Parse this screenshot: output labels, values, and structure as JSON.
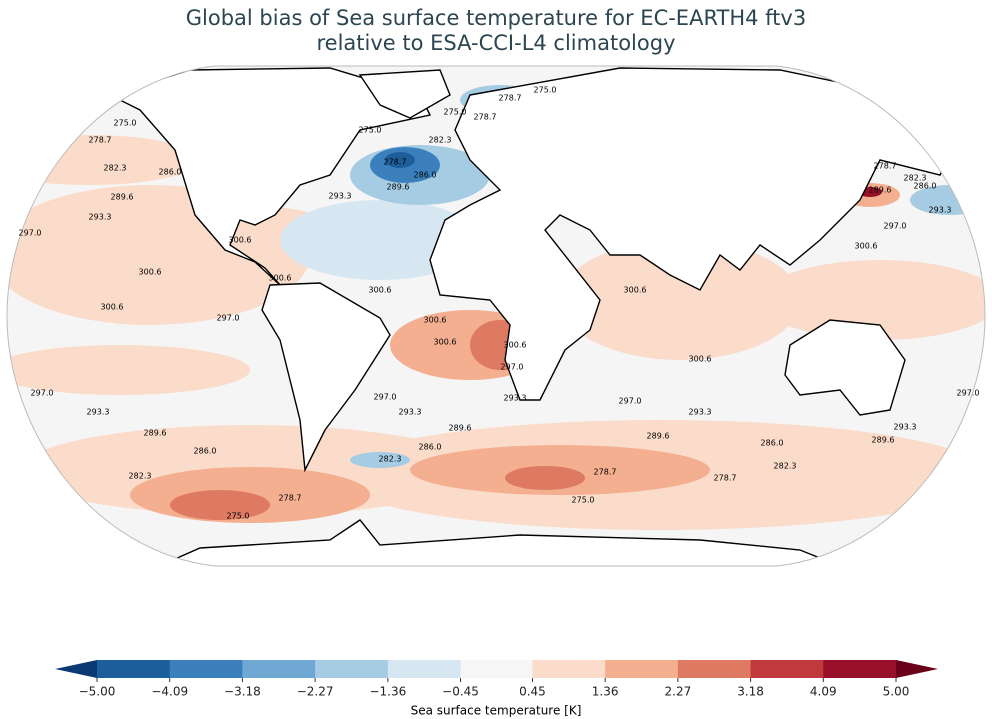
{
  "map": {
    "title_lines": [
      "Global bias of Sea surface temperature for EC-EARTH4 ftv3",
      "relative to ESA-CCI-L4 climatology"
    ],
    "colorbar": {
      "label": "Sea surface temperature [K]",
      "ticks": [
        {
          "value": -5,
          "label": "−5.00"
        },
        {
          "value": -4.09,
          "label": "−4.09"
        },
        {
          "value": -3.18,
          "label": "−3.18"
        },
        {
          "value": -2.27,
          "label": "−2.27"
        },
        {
          "value": -1.36,
          "label": "−1.36"
        },
        {
          "value": -0.45,
          "label": "−0.45"
        },
        0.45,
        1.36,
        2.27,
        3.18,
        4.09,
        {
          "value": 5,
          "label": "5.00"
        }
      ],
      "colors": [
        "#1c5d9c",
        "#3b80bd",
        "#6ea8d3",
        "#a6cce4",
        "#d7e7f2",
        "#f6f6f6",
        "#fbdcca",
        "#f4af91",
        "#de7a62",
        "#c1393d",
        "#970f28"
      ],
      "under_color": "#0b3a73",
      "over_color": "#6b0019"
    },
    "contour_labels": [
      "275.0",
      "278.7",
      "282.3",
      "286.0",
      "289.6",
      "293.3",
      "297.0",
      "300.6",
      "300.6",
      "297.0",
      "297.0",
      "293.3",
      "289.6",
      "286.0",
      "282.3",
      "278.7",
      "275.0",
      "275.0",
      "278.7",
      "282.3",
      "286.0",
      "289.6",
      "293.3",
      "300.6",
      "300.6",
      "300.6",
      "275.0",
      "278.7",
      "278.7",
      "275.0",
      "300.6",
      "300.6",
      "300.6",
      "297.0",
      "293.3",
      "297.0",
      "293.3",
      "289.6",
      "286.0",
      "282.3",
      "278.7",
      "275.0",
      "300.6",
      "300.6",
      "297.0",
      "293.3",
      "289.6",
      "286.0",
      "282.3",
      "278.7",
      "278.7",
      "282.3",
      "289.6",
      "286.0",
      "293.3",
      "297.0",
      "300.6",
      "297.0",
      "293.3",
      "289.6"
    ]
  }
}
